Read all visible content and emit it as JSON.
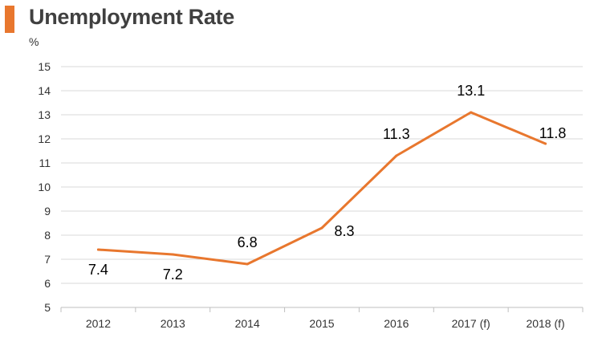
{
  "chart_data": {
    "type": "line",
    "title": "Unemployment Rate",
    "ylabel": "%",
    "xlabel": "",
    "categories": [
      "2012",
      "2013",
      "2014",
      "2015",
      "2016",
      "2017 (f)",
      "2018 (f)"
    ],
    "series": [
      {
        "values": [
          7.4,
          7.2,
          6.8,
          8.3,
          11.3,
          13.1,
          11.8
        ],
        "color": "#E8772E"
      }
    ],
    "data_labels": [
      "7.4",
      "7.2",
      "6.8",
      "8.3",
      "11.3",
      "13.1",
      "11.8"
    ],
    "ylim": [
      5,
      15
    ],
    "yticks": [
      "5",
      "6",
      "7",
      "8",
      "9",
      "10",
      "11",
      "12",
      "13",
      "14",
      "15"
    ],
    "grid": true,
    "legend": "none"
  },
  "colors": {
    "accent": "#E8772E",
    "grid": "#D9D9D9",
    "axis": "#BFBFBF"
  }
}
